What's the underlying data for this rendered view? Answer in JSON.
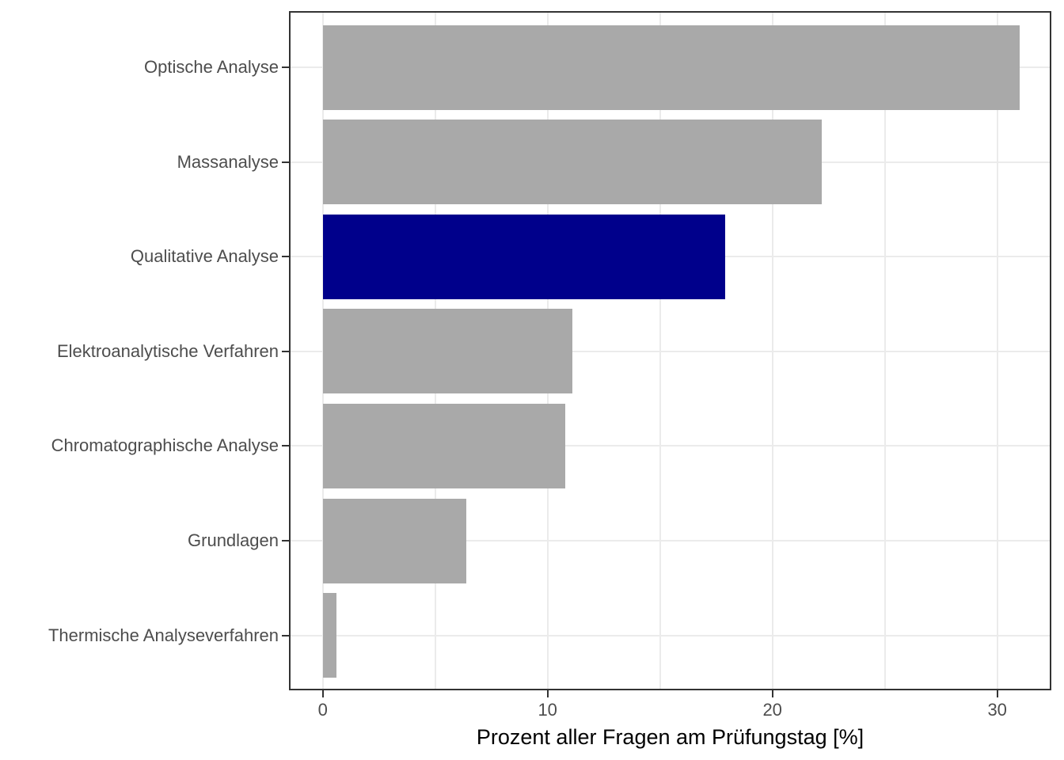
{
  "chart_data": {
    "type": "bar",
    "orientation": "horizontal",
    "categories": [
      "Optische Analyse",
      "Massanalyse",
      "Qualitative Analyse",
      "Elektroanalytische Verfahren",
      "Chromatographische Analyse",
      "Grundlagen",
      "Thermische Analyseverfahren"
    ],
    "values": [
      31.0,
      22.2,
      17.9,
      11.1,
      10.8,
      6.4,
      0.6
    ],
    "highlighted_category": "Qualitative Analyse",
    "title": "",
    "xlabel": "Prozent aller Fragen am Prüfungstag [%]",
    "ylabel": "",
    "x_ticks": [
      0,
      10,
      20,
      30
    ],
    "x_minor_ticks": [
      5,
      15,
      25
    ],
    "xlim": [
      0,
      32.5
    ],
    "grid": "on",
    "legend": "none",
    "colors": {
      "bar_default": "#A9A9A9",
      "bar_highlight": "#00008B",
      "gridline": "#EBEBEB",
      "panel_border": "#333333",
      "axis_text": "#4D4D4D",
      "axis_title": "#000000",
      "background": "#FFFFFF"
    }
  }
}
